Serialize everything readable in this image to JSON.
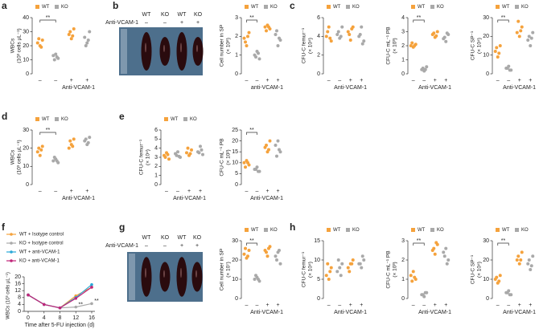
{
  "chart_data": [
    {
      "type": "dot",
      "panel": "a",
      "ylabel": "WBCs",
      "yunit": "(10³ cells µL⁻¹)",
      "ylim": [
        0,
        40
      ],
      "yticks": [
        0,
        10,
        20,
        30,
        40
      ],
      "legend": true,
      "significance": "**",
      "xlabel": "Anti-VCAM-1",
      "treatment": [
        "–",
        "–",
        "+",
        "+"
      ],
      "series": [
        {
          "name": "WT",
          "color": "#f5a23c",
          "values": [
            [
              22,
              24,
              20,
              25,
              19
            ],
            [
              28,
              32,
              25,
              30,
              27
            ]
          ]
        },
        {
          "name": "KO",
          "color": "#a9a9a9",
          "values": [
            [
              13,
              11,
              14,
              10,
              12
            ],
            [
              26,
              30,
              22,
              20,
              24
            ]
          ]
        }
      ]
    },
    {
      "type": "dot",
      "panel": "b",
      "ylabel": "Cell number in SP",
      "yunit": "(× 10⁸)",
      "ylim": [
        0,
        3
      ],
      "yticks": [
        0,
        1,
        2,
        3
      ],
      "legend": true,
      "significance": "**",
      "xlabel": "anti-VCAM-1",
      "treatment": [
        "–",
        "–",
        "+",
        "+"
      ],
      "series": [
        {
          "name": "WT",
          "color": "#f5a23c",
          "values": [
            [
              1.9,
              2.2,
              1.5,
              1.7,
              2.0
            ],
            [
              2.5,
              2.4,
              2.6,
              2.3,
              2.5
            ]
          ]
        },
        {
          "name": "KO",
          "color": "#a9a9a9",
          "values": [
            [
              1.0,
              0.8,
              1.2,
              0.9,
              1.1
            ],
            [
              2.1,
              1.8,
              1.5,
              2.3,
              1.9
            ]
          ]
        }
      ]
    },
    {
      "type": "dot",
      "panel": "c",
      "ylabel": "CFU-C femur⁻¹",
      "yunit": "(× 10⁴)",
      "ylim": [
        0,
        6
      ],
      "yticks": [
        0,
        2,
        4,
        6
      ],
      "legend": true,
      "xlabel": "Anti-VCAM-1",
      "treatment": [
        "–",
        "–",
        "+",
        "+"
      ],
      "series": [
        {
          "name": "WT",
          "color": "#f5a23c",
          "values": [
            [
              4,
              3.5,
              5,
              4.5,
              3.8
            ],
            [
              4.5,
              5,
              3.6,
              4.2,
              4.8
            ]
          ]
        },
        {
          "name": "KO",
          "color": "#a9a9a9",
          "values": [
            [
              4.2,
              5,
              3.8,
              4.5,
              4
            ],
            [
              4,
              3.5,
              5,
              4.2,
              3.2
            ]
          ]
        }
      ]
    },
    {
      "type": "dot",
      "ylabel": "CFU-C mL⁻¹ PB",
      "yunit": "(× 10³)",
      "ylim": [
        0,
        4
      ],
      "yticks": [
        0,
        1,
        2,
        3,
        4
      ],
      "legend": true,
      "significance": "**",
      "xlabel": "Anti-VCAM-1",
      "treatment": [
        "–",
        "–",
        "+",
        "+"
      ],
      "series": [
        {
          "name": "WT",
          "color": "#f5a23c",
          "values": [
            [
              2,
              2.1,
              1.9,
              2.2,
              2.0
            ],
            [
              2.8,
              3.0,
              2.6,
              2.9,
              2.7
            ]
          ]
        },
        {
          "name": "KO",
          "color": "#a9a9a9",
          "values": [
            [
              0.3,
              0.5,
              0.2,
              0.4,
              0.3
            ],
            [
              2.5,
              2.8,
              2.3,
              2.6,
              2.9
            ]
          ]
        }
      ]
    },
    {
      "type": "dot",
      "ylabel": "CFU-C SP⁻¹",
      "yunit": "(× 10⁴)",
      "ylim": [
        0,
        30
      ],
      "yticks": [
        0,
        10,
        20,
        30
      ],
      "legend": true,
      "significance": "**",
      "xlabel": "Anti-VCAM-1",
      "treatment": [
        "–",
        "–",
        "+",
        "+"
      ],
      "series": [
        {
          "name": "WT",
          "color": "#f5a23c",
          "values": [
            [
              12,
              15,
              9,
              14,
              11
            ],
            [
              22,
              25,
              20,
              28,
              23
            ]
          ]
        },
        {
          "name": "KO",
          "color": "#a9a9a9",
          "values": [
            [
              3,
              2,
              4,
              3,
              2
            ],
            [
              18,
              22,
              15,
              20,
              19
            ]
          ]
        }
      ]
    },
    {
      "type": "dot",
      "panel": "d",
      "ylabel": "WBCs",
      "yunit": "(10³ cells µL⁻¹)",
      "ylim": [
        0,
        30
      ],
      "yticks": [
        0,
        10,
        20,
        30
      ],
      "legend": true,
      "significance": "**",
      "xlabel": "Anti-VCAM-1",
      "treatment": [
        "–",
        "–",
        "+",
        "+"
      ],
      "series": [
        {
          "name": "WT",
          "color": "#f5a23c",
          "values": [
            [
              18,
              21,
              16,
              20,
              19
            ],
            [
              20,
              25,
              22,
              24,
              21
            ]
          ]
        },
        {
          "name": "KO",
          "color": "#a9a9a9",
          "values": [
            [
              13,
              12,
              14,
              15,
              13
            ],
            [
              24,
              26,
              22,
              25,
              23
            ]
          ]
        }
      ]
    },
    {
      "type": "dot",
      "panel": "e",
      "ylabel": "CFU-C femur⁻¹",
      "yunit": "(× 10⁴)",
      "ylim": [
        0,
        6
      ],
      "yticks": [
        0,
        1,
        2,
        3,
        4,
        5,
        6
      ],
      "legend": true,
      "xlabel": "Anti-VCAM-1",
      "treatment": [
        "–",
        "–",
        "+",
        "+"
      ],
      "series": [
        {
          "name": "WT",
          "color": "#f5a23c",
          "values": [
            [
              3.2,
              2.8,
              3.5,
              3.0,
              3.3
            ],
            [
              3.5,
              3.8,
              3.2,
              4,
              3.4
            ]
          ]
        },
        {
          "name": "KO",
          "color": "#a9a9a9",
          "values": [
            [
              3.4,
              3.0,
              3.6,
              3.2,
              3.1
            ],
            [
              3.6,
              3.3,
              4.2,
              3.5,
              3.8
            ]
          ]
        }
      ]
    },
    {
      "type": "dot",
      "ylabel": "CFU-C mL⁻¹ PB",
      "yunit": "(× 10²)",
      "ylim": [
        0,
        25
      ],
      "yticks": [
        0,
        5,
        10,
        15,
        20,
        25
      ],
      "legend": false,
      "significance": "**",
      "xlabel": "Anti-VCAM-1",
      "treatment": [
        "–",
        "–",
        "+",
        "+"
      ],
      "series": [
        {
          "name": "WT",
          "color": "#f5a23c",
          "values": [
            [
              10,
              9,
              11,
              8,
              10
            ],
            [
              17,
              20,
              15,
              18,
              16
            ]
          ]
        },
        {
          "name": "KO",
          "color": "#a9a9a9",
          "values": [
            [
              7,
              6,
              8,
              7,
              6
            ],
            [
              18,
              15,
              20,
              13,
              16
            ]
          ]
        }
      ]
    },
    {
      "type": "line",
      "panel": "f",
      "ylabel": "WBCs (10³ cells µL⁻¹)",
      "xlabel": "Time after 5-FU injection (d)",
      "x": [
        0,
        4,
        8,
        12,
        16
      ],
      "xlim": [
        0,
        16
      ],
      "xticks": [
        0,
        4,
        8,
        12,
        16
      ],
      "ylim": [
        0,
        20
      ],
      "yticks": [
        0,
        4,
        8,
        12,
        16,
        20
      ],
      "annotations": [
        {
          "text": "**",
          "x": 12
        },
        {
          "text": "**",
          "x": 16
        }
      ],
      "series": [
        {
          "name": "WT + Isotype control",
          "color": "#f5a23c",
          "values": [
            9.5,
            4,
            2,
            9,
            14
          ]
        },
        {
          "name": "KO + Isotype control",
          "color": "#a9a9a9",
          "values": [
            9.5,
            4,
            2,
            2.5,
            4.5
          ]
        },
        {
          "name": "WT + anti-VCAM-1",
          "color": "#29a8d8",
          "values": [
            9.5,
            4,
            2,
            8,
            15.5
          ]
        },
        {
          "name": "KO + anti-VCAM-1",
          "color": "#c0267a",
          "values": [
            9.5,
            4,
            2,
            7.5,
            14
          ]
        }
      ]
    },
    {
      "type": "dot",
      "panel": "g",
      "ylabel": "Cell number in SP",
      "yunit": "(× 10⁷)",
      "ylim": [
        0,
        30
      ],
      "yticks": [
        0,
        10,
        20,
        30
      ],
      "legend": true,
      "significance": "**",
      "xlabel": "Anti-VCAM-1",
      "treatment": [
        "–",
        "–",
        "+",
        "+"
      ],
      "series": [
        {
          "name": "WT",
          "color": "#f5a23c",
          "values": [
            [
              23,
              25,
              21,
              26,
              22
            ],
            [
              25,
              27,
              22,
              24,
              26
            ]
          ]
        },
        {
          "name": "KO",
          "color": "#a9a9a9",
          "values": [
            [
              10,
              9,
              11,
              12,
              10
            ],
            [
              22,
              18,
              24,
              20,
              25
            ]
          ]
        }
      ]
    },
    {
      "type": "dot",
      "panel": "h",
      "ylabel": "CFU-C femur⁻¹",
      "yunit": "(× 10⁴)",
      "ylim": [
        0,
        15
      ],
      "yticks": [
        0,
        5,
        10,
        15
      ],
      "legend": true,
      "xlabel": "Anti-VCAM-1",
      "treatment": [
        "–",
        "–",
        "+",
        "+"
      ],
      "series": [
        {
          "name": "WT",
          "color": "#f5a23c",
          "values": [
            [
              6,
              8,
              5,
              9,
              7
            ],
            [
              8,
              10,
              9,
              7,
              9
            ]
          ]
        },
        {
          "name": "KO",
          "color": "#a9a9a9",
          "values": [
            [
              7,
              9,
              8,
              10,
              6
            ],
            [
              9,
              10,
              8,
              9,
              11
            ]
          ]
        }
      ]
    },
    {
      "type": "dot",
      "ylabel": "CFU-C mL⁻¹ PB",
      "yunit": "(× 10³)",
      "ylim": [
        0,
        3
      ],
      "yticks": [
        0,
        1,
        2,
        3
      ],
      "legend": true,
      "significance": "**",
      "xlabel": "Anti-VCAM-1",
      "treatment": [
        "–",
        "–",
        "+",
        "+"
      ],
      "series": [
        {
          "name": "WT",
          "color": "#f5a23c",
          "values": [
            [
              1.2,
              1.0,
              1.4,
              0.9,
              1.1
            ],
            [
              2.5,
              2.8,
              2.3,
              2.6,
              2.9
            ]
          ]
        },
        {
          "name": "KO",
          "color": "#a9a9a9",
          "values": [
            [
              0.2,
              0.3,
              0.1,
              0.2,
              0.3
            ],
            [
              2.4,
              2.0,
              2.6,
              2.2,
              1.8
            ]
          ]
        }
      ]
    },
    {
      "type": "dot",
      "ylabel": "CFU-C SP⁻¹",
      "yunit": "(× 10⁴)",
      "ylim": [
        0,
        30
      ],
      "yticks": [
        0,
        10,
        20,
        30
      ],
      "legend": true,
      "significance": "**",
      "xlabel": "Anti-VCAM-1",
      "treatment": [
        "–",
        "–",
        "+",
        "+"
      ],
      "series": [
        {
          "name": "WT",
          "color": "#f5a23c",
          "values": [
            [
              10,
              12,
              8,
              11,
              9
            ],
            [
              20,
              24,
              18,
              22,
              20
            ]
          ]
        },
        {
          "name": "KO",
          "color": "#a9a9a9",
          "values": [
            [
              3,
              2,
              4,
              3,
              2
            ],
            [
              18,
              22,
              15,
              20,
              17
            ]
          ]
        }
      ]
    }
  ],
  "photos": [
    {
      "labels": [
        "WT",
        "KO",
        "WT",
        "KO"
      ],
      "treatment_label": "Anti-VCAM-1",
      "treatment": [
        "–",
        "–",
        "+",
        "+"
      ]
    },
    {
      "labels": [
        "WT",
        "KO",
        "WT",
        "KO"
      ],
      "treatment_label": "Anti-VCAM-1",
      "treatment": [
        "–",
        "–",
        "+",
        "+"
      ]
    }
  ]
}
